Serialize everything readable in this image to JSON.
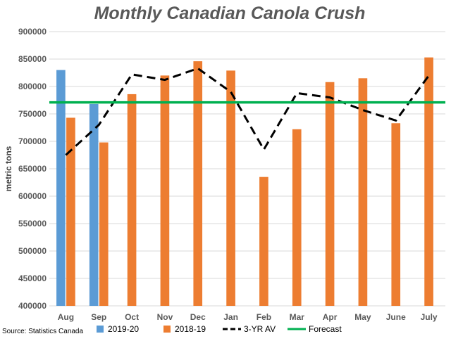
{
  "chart_data": {
    "type": "bar",
    "title": "Monthly Canadian Canola Crush",
    "ylabel": "metric tons",
    "xlabel": "",
    "source": "Source: Statistics Canada",
    "categories": [
      "Aug",
      "Sep",
      "Oct",
      "Nov",
      "Dec",
      "Jan",
      "Feb",
      "Mar",
      "Apr",
      "May",
      "June",
      "July"
    ],
    "ylim": [
      400000,
      900000
    ],
    "yticks": [
      "400000",
      "450000",
      "500000",
      "550000",
      "600000",
      "650000",
      "700000",
      "750000",
      "800000",
      "850000",
      "900000"
    ],
    "grid": true,
    "legend_position": "bottom",
    "series": [
      {
        "name": "2019-20",
        "type": "bar",
        "color": "#5B9BD5",
        "values": [
          830000,
          768000,
          null,
          null,
          null,
          null,
          null,
          null,
          null,
          null,
          null,
          null
        ]
      },
      {
        "name": "2018-19",
        "type": "bar",
        "color": "#ED7D31",
        "values": [
          743000,
          698000,
          786000,
          820000,
          846000,
          829000,
          635000,
          722000,
          808000,
          815000,
          733000,
          853000
        ]
      },
      {
        "name": "3-YR AV",
        "type": "line",
        "style": "dashed",
        "color": "#000000",
        "values": [
          675000,
          730000,
          822000,
          812000,
          833000,
          790000,
          685000,
          788000,
          780000,
          757000,
          738000,
          820000
        ]
      },
      {
        "name": "Forecast",
        "type": "line",
        "style": "solid",
        "color": "#00B050",
        "values": [
          771000,
          771000,
          771000,
          771000,
          771000,
          771000,
          771000,
          771000,
          771000,
          771000,
          771000,
          771000
        ]
      }
    ]
  }
}
